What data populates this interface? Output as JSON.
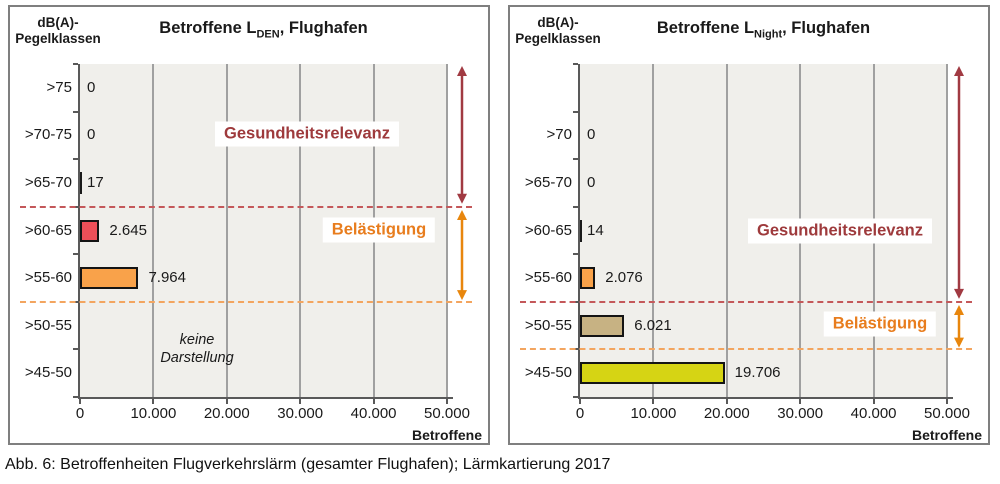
{
  "figure": {
    "caption": "Abb. 6: Betroffenheiten Flugverkehrslärm (gesamter Flughafen); Lärmkartierung 2017"
  },
  "shared": {
    "y_axis_title_line1": "dB(A)-",
    "y_axis_title_line2": "Pegelklassen",
    "x_axis_label": "Betroffene",
    "x_tick_labels": [
      "0",
      "10.000",
      "20.000",
      "30.000",
      "40.000",
      "50.000"
    ],
    "x_max": 50000
  },
  "colors": {
    "health_text": "#9e3a3c",
    "health_dash": "#c4585a",
    "health_arrow": "#a13a42",
    "annoyance_text": "#e87d1e",
    "annoyance_dash": "#f3a55f",
    "annoyance_arrow": "#e8860d",
    "plot_bg": "#f0efeb",
    "gridline": "#a0a0a0",
    "axis": "#595959",
    "panel_border": "#7f7f7f",
    "bar_border": "#141414",
    "bar_red": "#ed4f58",
    "bar_orange": "#f9a24a",
    "bar_tan": "#c7b283",
    "bar_yellow": "#d6d414",
    "bar_tiny": "#1a1a1a"
  },
  "chart_data": [
    {
      "type": "bar",
      "orientation": "horizontal",
      "title": "Betroffene LDEN, Flughafen",
      "title_parts": {
        "prefix": "Betroffene L",
        "sub": "DEN",
        "suffix": ", Flughafen"
      },
      "xlabel": "Betroffene",
      "ylabel": "dB(A)-Pegelklassen",
      "xlim": [
        0,
        50000
      ],
      "x_tick_labels": [
        "0",
        "10.000",
        "20.000",
        "30.000",
        "40.000",
        "50.000"
      ],
      "categories": [
        ">75",
        ">70-75",
        ">65-70",
        ">60-65",
        ">55-60",
        ">50-55",
        ">45-50"
      ],
      "values": [
        0,
        0,
        17,
        2645,
        7964,
        null,
        null
      ],
      "value_labels": [
        "0",
        "0",
        "17",
        "2.645",
        "7.964",
        "",
        ""
      ],
      "bar_colors": [
        null,
        null,
        "#1a1a1a",
        "#ed4f58",
        "#f9a24a",
        null,
        null
      ],
      "note_line1": "keine",
      "note_line2": "Darstellung",
      "zones": {
        "health": {
          "label": "Gesundheitsrelevanz",
          "boundary_after_category": ">65-70"
        },
        "annoyance": {
          "label": "Belästigung",
          "boundary_after_category": ">55-60"
        }
      }
    },
    {
      "type": "bar",
      "orientation": "horizontal",
      "title": "Betroffene LNight, Flughafen",
      "title_parts": {
        "prefix": "Betroffene L",
        "sub": "Night",
        "suffix": ", Flughafen"
      },
      "xlabel": "Betroffene",
      "ylabel": "dB(A)-Pegelklassen",
      "xlim": [
        0,
        50000
      ],
      "x_tick_labels": [
        "0",
        "10.000",
        "20.000",
        "30.000",
        "40.000",
        "50.000"
      ],
      "categories": [
        "",
        ">70",
        ">65-70",
        ">60-65",
        ">55-60",
        ">50-55",
        ">45-50"
      ],
      "values": [
        null,
        0,
        0,
        14,
        2076,
        6021,
        19706
      ],
      "value_labels": [
        "",
        "0",
        "0",
        "14",
        "2.076",
        "6.021",
        "19.706"
      ],
      "bar_colors": [
        null,
        null,
        null,
        "#1a1a1a",
        "#f9a24a",
        "#c7b283",
        "#d6d414"
      ],
      "note_line1": "",
      "note_line2": "",
      "zones": {
        "health": {
          "label": "Gesundheitsrelevanz",
          "boundary_after_category": ">55-60"
        },
        "annoyance": {
          "label": "Belästigung",
          "boundary_after_category": ">50-55"
        }
      }
    }
  ]
}
